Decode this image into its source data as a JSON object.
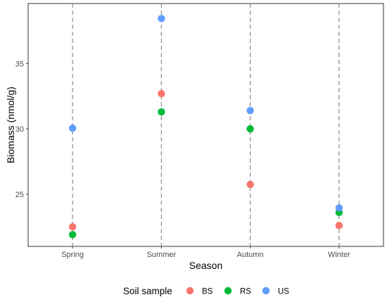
{
  "chart_data": {
    "type": "scatter",
    "xlabel": "Season",
    "ylabel": "Biomass (nmol/g)",
    "categories": [
      "Spring",
      "Summer",
      "Autumn",
      "Winter"
    ],
    "ylim": [
      21,
      39.6
    ],
    "y_ticks": [
      25,
      30,
      35
    ],
    "y_tick_labels": [
      "25",
      "30",
      "35"
    ],
    "grid": false,
    "vertical_dashed_lines": true,
    "legend": {
      "title": "Soil sample",
      "position": "bottom"
    },
    "series": [
      {
        "name": "BS",
        "color": "#f8766d",
        "values": [
          22.5,
          32.7,
          25.75,
          22.6
        ]
      },
      {
        "name": "RS",
        "color": "#00ba38",
        "values": [
          21.9,
          31.3,
          30.0,
          23.6
        ]
      },
      {
        "name": "US",
        "color": "#619cff",
        "values": [
          30.05,
          38.45,
          31.4,
          23.95
        ]
      }
    ]
  }
}
